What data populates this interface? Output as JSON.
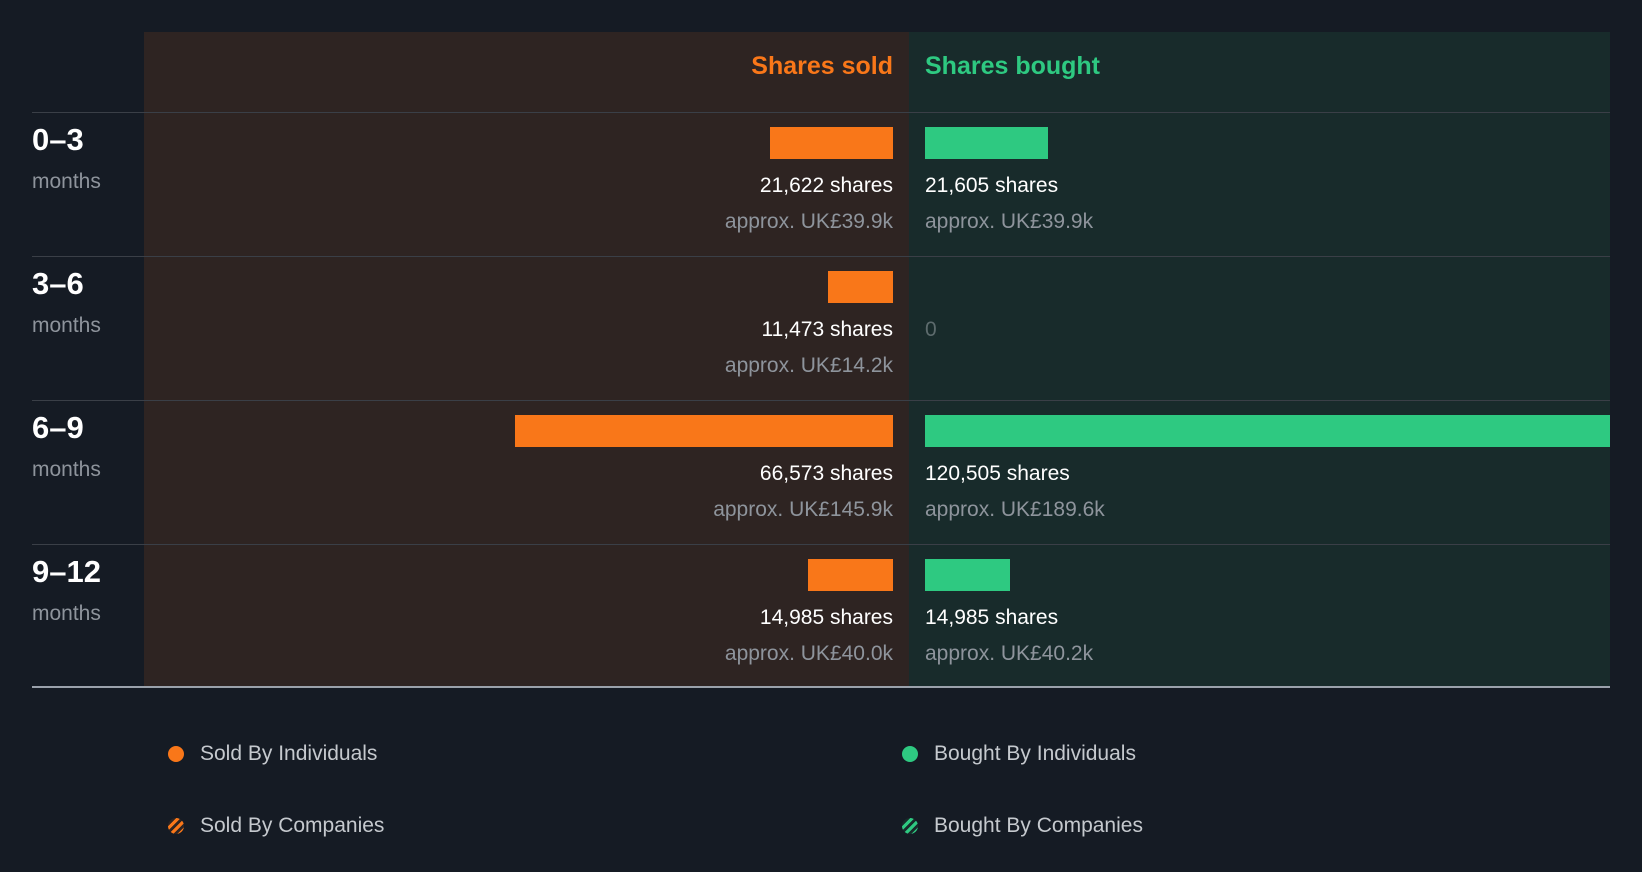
{
  "colors": {
    "sold": "#f97719",
    "bought": "#2ec981",
    "background": "#151b24"
  },
  "header": {
    "sold_label": "Shares sold",
    "bought_label": "Shares bought"
  },
  "rows": [
    {
      "period": "0–3",
      "unit": "months",
      "sold_shares": "21,622 shares",
      "sold_value": "approx. UK£39.9k",
      "bought_shares": "21,605 shares",
      "bought_value": "approx. UK£39.9k",
      "bought_empty": ""
    },
    {
      "period": "3–6",
      "unit": "months",
      "sold_shares": "11,473 shares",
      "sold_value": "approx. UK£14.2k",
      "bought_shares": "",
      "bought_value": "",
      "bought_empty": "0"
    },
    {
      "period": "6–9",
      "unit": "months",
      "sold_shares": "66,573 shares",
      "sold_value": "approx. UK£145.9k",
      "bought_shares": "120,505 shares",
      "bought_value": "approx. UK£189.6k",
      "bought_empty": ""
    },
    {
      "period": "9–12",
      "unit": "months",
      "sold_shares": "14,985 shares",
      "sold_value": "approx. UK£40.0k",
      "bought_shares": "14,985 shares",
      "bought_value": "approx. UK£40.2k",
      "bought_empty": ""
    }
  ],
  "legend": {
    "sold_individuals": "Sold By Individuals",
    "bought_individuals": "Bought By Individuals",
    "sold_companies": "Sold By Companies",
    "bought_companies": "Bought By Companies"
  },
  "chart_data": {
    "type": "bar",
    "categories": [
      "0–3 months",
      "3–6 months",
      "6–9 months",
      "9–12 months"
    ],
    "series": [
      {
        "name": "Shares sold",
        "values": [
          21622,
          11473,
          66573,
          14985
        ]
      },
      {
        "name": "Shares bought",
        "values": [
          21605,
          0,
          120505,
          14985
        ]
      }
    ],
    "value_gbp": {
      "sold": [
        "approx. UK£39.9k",
        "approx. UK£14.2k",
        "approx. UK£145.9k",
        "approx. UK£40.0k"
      ],
      "bought": [
        "approx. UK£39.9k",
        "",
        "approx. UK£189.6k",
        "approx. UK£40.2k"
      ]
    },
    "legend": [
      "Sold By Individuals",
      "Bought By Individuals",
      "Sold By Companies",
      "Bought By Companies"
    ],
    "grid": false
  }
}
